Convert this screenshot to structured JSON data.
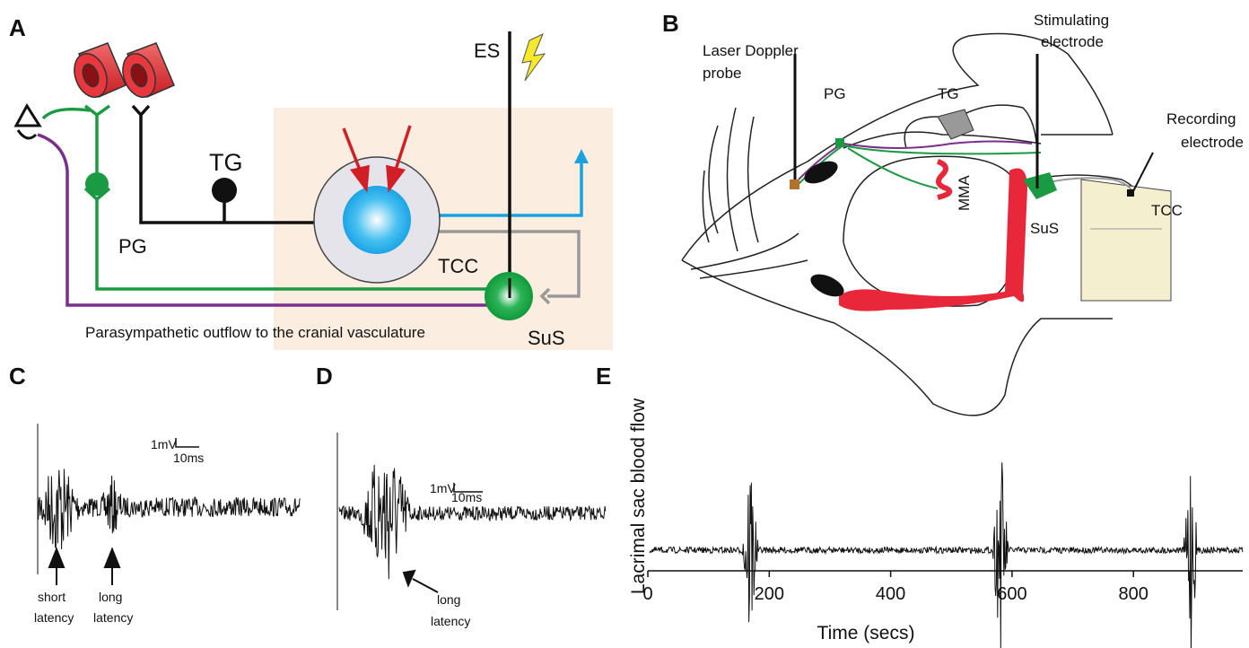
{
  "panel_a": {
    "label": "A",
    "es": "ES",
    "tg": "TG",
    "pg": "PG",
    "tcc": "TCC",
    "sus": "SuS",
    "caption": "Parasympathetic outflow to the cranial vasculature"
  },
  "panel_b": {
    "label": "B",
    "laser_probe": [
      "Laser Doppler",
      "probe"
    ],
    "pg": "PG",
    "tg": "TG",
    "stimulating": [
      "Stimulating",
      "electrode"
    ],
    "recording": [
      "Recording",
      "electrode"
    ],
    "mma": "MMA",
    "sus": "SuS",
    "tcc": "TCC"
  },
  "panel_c": {
    "label": "C",
    "scale_v": "1mV",
    "scale_t": "10ms",
    "short_latency": [
      "short",
      "latency"
    ],
    "long_latency": [
      "long",
      "latency"
    ]
  },
  "panel_d": {
    "label": "D",
    "scale_v": "1mV",
    "scale_t": "10ms",
    "long_latency": [
      "long",
      "latency"
    ]
  },
  "panel_e": {
    "label": "E",
    "y_label": "Lacrimal sac blood flow",
    "x_label": "Time (secs)",
    "xlim": [
      0,
      980
    ],
    "xticks": [
      0,
      200,
      400,
      600,
      800
    ]
  }
}
